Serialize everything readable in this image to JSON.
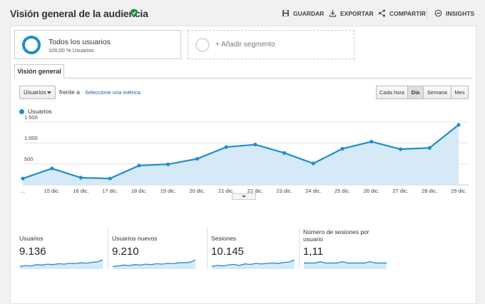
{
  "header": {
    "title": "Visión general de la audiencia",
    "actions": {
      "save": "GUARDAR",
      "export": "EXPORTAR",
      "share": "COMPARTIR",
      "insights": "INSIGHTS"
    }
  },
  "segments": {
    "active": {
      "name": "Todos los usuarios",
      "sub": "100,00 % Usuarios"
    },
    "add_label": "+ Añadir segmento"
  },
  "tabs": [
    {
      "label": "Visión general"
    }
  ],
  "controls": {
    "metric_select": "Usuarios",
    "versus": "frente a",
    "select_metric": "Seleccione una métrica",
    "periods": [
      "Cada hora",
      "Día",
      "Semana",
      "Mes"
    ],
    "active_period": "Día"
  },
  "chart_data": {
    "type": "area",
    "series": [
      {
        "name": "Usuarios",
        "values": [
          150,
          390,
          170,
          150,
          460,
          490,
          620,
          900,
          960,
          760,
          510,
          860,
          1030,
          850,
          880,
          1430
        ]
      }
    ],
    "categories": [
      "...",
      "15 dic.",
      "16 dic.",
      "17 dic.",
      "18 dic.",
      "19 dic.",
      "20 dic.",
      "21 dic.",
      "22 dic.",
      "23 dic.",
      "24 dic.",
      "25 dic.",
      "26 dic.",
      "27 dic.",
      "28 dic.",
      "29 dic."
    ],
    "y_ticks": [
      "500",
      "1.000",
      "1.500"
    ],
    "ylim": [
      0,
      1650
    ],
    "grid": true,
    "color": "#1d8ece",
    "fill": "#d5e9f6"
  },
  "kpis": [
    {
      "label": "Usuarios",
      "value": "9.136",
      "spark": [
        20,
        22,
        21,
        24,
        23,
        25,
        24,
        26,
        25,
        27,
        26,
        28,
        27,
        29,
        30,
        34
      ]
    },
    {
      "label": "Usuarios nuevos",
      "value": "9.210",
      "spark": [
        20,
        21,
        23,
        22,
        24,
        23,
        25,
        24,
        26,
        25,
        27,
        26,
        28,
        28,
        29,
        34
      ]
    },
    {
      "label": "Sesiones",
      "value": "10.145",
      "spark": [
        20,
        22,
        21,
        23,
        24,
        22,
        25,
        24,
        26,
        25,
        26,
        27,
        26,
        28,
        29,
        33
      ]
    },
    {
      "label": "Número de sesiones por usuario",
      "value": "1,11",
      "spark": [
        30,
        30,
        30,
        31,
        30,
        30,
        30,
        31,
        30,
        30,
        30,
        30,
        31,
        30,
        30,
        30
      ]
    }
  ]
}
